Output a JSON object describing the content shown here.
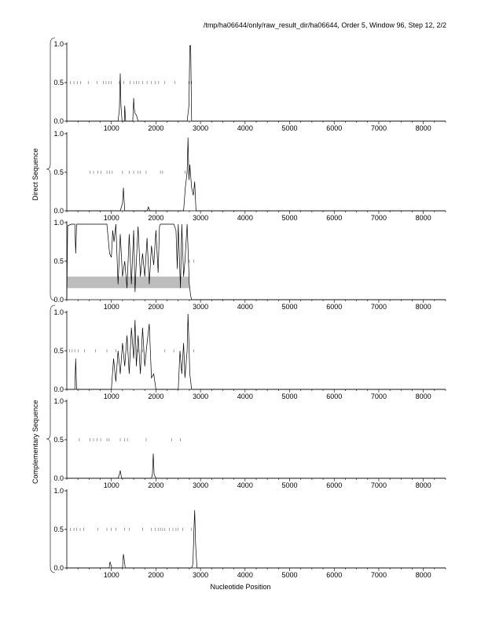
{
  "header": {
    "title": "/tmp/ha06644/only/raw_result_dir/ha06644, Order 5, Window 96, Step 12, 2/2"
  },
  "labels": {
    "xlabel": "Nucleotide Position",
    "group_top": "Direct Sequence",
    "group_bottom": "Complementary Sequence"
  },
  "colors": {
    "line": "#000000",
    "band": "#bdbdbd",
    "tick": "#666666"
  },
  "chart_data": [
    {
      "type": "line",
      "panel": 1,
      "xlim": [
        0,
        8500
      ],
      "ylim": [
        0,
        1
      ],
      "xticks": [
        "1000",
        "2000",
        "3000",
        "4000",
        "5000",
        "6000",
        "7000",
        "8000"
      ],
      "yticks": [
        "0.0",
        "0.5",
        "1.0"
      ],
      "series": [
        {
          "x": [
            0,
            1150,
            1180,
            1200,
            1215,
            1240,
            1290,
            1300,
            1320,
            1480,
            1500,
            1510,
            1530,
            1560,
            1600,
            2700,
            2740,
            2760,
            2780,
            2800,
            8500
          ],
          "y": [
            0,
            0,
            0.15,
            0.62,
            0.2,
            0,
            0,
            0.2,
            0,
            0,
            0.3,
            0.18,
            0.1,
            0.08,
            0,
            0,
            0.2,
            0.98,
            0.98,
            0,
            0
          ]
        }
      ],
      "marker_y": 0.5,
      "markers": [
        80,
        160,
        240,
        310,
        480,
        680,
        820,
        880,
        940,
        1000,
        1180,
        1280,
        1420,
        1500,
        1560,
        1620,
        1700,
        1800,
        1900,
        1980,
        2060,
        2200,
        2420,
        2740,
        2800
      ]
    },
    {
      "type": "line",
      "panel": 2,
      "xlim": [
        0,
        8500
      ],
      "ylim": [
        0,
        1
      ],
      "xticks": [
        "1000",
        "2000",
        "3000",
        "4000",
        "5000",
        "6000",
        "7000",
        "8000"
      ],
      "yticks": [
        "0.0",
        "0.5",
        "1.0"
      ],
      "series": [
        {
          "x": [
            0,
            1200,
            1250,
            1270,
            1300,
            1800,
            1830,
            1860,
            2620,
            2660,
            2700,
            2720,
            2740,
            2760,
            2800,
            2840,
            2870,
            2900,
            8500
          ],
          "y": [
            0,
            0,
            0.1,
            0.3,
            0,
            0,
            0.05,
            0,
            0,
            0.3,
            0.5,
            0.95,
            0.4,
            0.6,
            0.3,
            0.2,
            0.38,
            0,
            0
          ]
        }
      ],
      "marker_y": 0.5,
      "markers": [
        520,
        600,
        700,
        770,
        900,
        960,
        1020,
        1250,
        1400,
        1500,
        1600,
        1650,
        1780,
        2100,
        2150,
        2650,
        2700
      ]
    },
    {
      "type": "line",
      "panel": 3,
      "xlim": [
        0,
        8500
      ],
      "ylim": [
        0,
        1
      ],
      "xticks": [
        "1000",
        "2000",
        "3000",
        "4000",
        "5000",
        "6000",
        "7000",
        "8000"
      ],
      "yticks": [
        "0.0",
        "0.5",
        "1.0"
      ],
      "band": [
        0.15,
        0.3,
        0,
        2750
      ],
      "series": [
        {
          "x": [
            0,
            20,
            100,
            180,
            200,
            220,
            240,
            800,
            900,
            960,
            1000,
            1030,
            1060,
            1100,
            1150,
            1200,
            1250,
            1300,
            1350,
            1400,
            1450,
            1500,
            1530,
            1560,
            1600,
            1650,
            1700,
            1750,
            1800,
            1850,
            1900,
            1950,
            2000,
            2050,
            2080,
            2100,
            2150,
            2200,
            2400,
            2450,
            2480,
            2500,
            2550,
            2580,
            2620,
            2650,
            2700,
            2750,
            2780,
            2800,
            8500
          ],
          "y": [
            0,
            0.96,
            0.98,
            0.98,
            0.6,
            0.98,
            0.98,
            0.98,
            0.98,
            0.6,
            0.55,
            0.9,
            0.75,
            0.98,
            0.2,
            0.85,
            0.3,
            0.5,
            0.15,
            0.85,
            0.2,
            0.9,
            0.1,
            0.5,
            0.95,
            0.3,
            0.6,
            0.3,
            0.8,
            0.2,
            0.7,
            0.45,
            0.9,
            0.35,
            0.95,
            0.98,
            0.98,
            0.98,
            0.98,
            0.9,
            0.4,
            0.98,
            0.15,
            0.98,
            0.3,
            0.5,
            0.98,
            0.2,
            0.05,
            0,
            0
          ]
        }
      ],
      "marker_y": 0.5,
      "markers": [
        2650,
        2750,
        2850
      ]
    },
    {
      "type": "line",
      "panel": 4,
      "xlim": [
        0,
        8500
      ],
      "ylim": [
        0,
        1
      ],
      "xticks": [
        "1000",
        "2000",
        "3000",
        "4000",
        "5000",
        "6000",
        "7000",
        "8000"
      ],
      "yticks": [
        "0.0",
        "0.5",
        "1.0"
      ],
      "series": [
        {
          "x": [
            0,
            180,
            200,
            220,
            1000,
            1050,
            1100,
            1150,
            1200,
            1250,
            1300,
            1350,
            1400,
            1450,
            1500,
            1530,
            1560,
            1600,
            1650,
            1700,
            1750,
            1800,
            1850,
            1900,
            1950,
            2000,
            2500,
            2540,
            2580,
            2620,
            2650,
            2700,
            2720,
            2740,
            2760,
            2800,
            8500
          ],
          "y": [
            0,
            0,
            0.4,
            0,
            0,
            0.4,
            0.1,
            0.5,
            0.2,
            0.6,
            0.3,
            0.7,
            0.2,
            0.8,
            0.4,
            0.9,
            0.3,
            0.7,
            0.2,
            0.8,
            0.3,
            0.6,
            0.85,
            0.15,
            0.2,
            0,
            0,
            0.5,
            0.2,
            0.6,
            0.15,
            0.5,
            0.98,
            0.6,
            0.2,
            0,
            0
          ]
        }
      ],
      "marker_y": 0.5,
      "markers": [
        60,
        120,
        180,
        260,
        400,
        640,
        900,
        1100,
        1600,
        1700,
        2200,
        2400,
        2850
      ]
    },
    {
      "type": "line",
      "panel": 5,
      "xlim": [
        0,
        8500
      ],
      "ylim": [
        0,
        1
      ],
      "xticks": [
        "1000",
        "2000",
        "3000",
        "4000",
        "5000",
        "6000",
        "7000",
        "8000"
      ],
      "yticks": [
        "0.0",
        "0.5",
        "1.0"
      ],
      "series": [
        {
          "x": [
            0,
            1150,
            1180,
            1200,
            1230,
            1900,
            1920,
            1940,
            1960,
            2000,
            8500
          ],
          "y": [
            0,
            0,
            0.05,
            0.1,
            0,
            0,
            0.05,
            0.32,
            0.05,
            0,
            0
          ]
        }
      ],
      "marker_y": 0.5,
      "markers": [
        280,
        520,
        600,
        680,
        760,
        900,
        950,
        1200,
        1300,
        1360,
        1780,
        2350,
        2550
      ]
    },
    {
      "type": "line",
      "panel": 6,
      "xlim": [
        0,
        8500
      ],
      "ylim": [
        0,
        1
      ],
      "xticks": [
        "1000",
        "2000",
        "3000",
        "4000",
        "5000",
        "6000",
        "7000",
        "8000"
      ],
      "yticks": [
        "0.0",
        "0.5",
        "1.0"
      ],
      "series": [
        {
          "x": [
            0,
            950,
            970,
            990,
            1010,
            1250,
            1270,
            1290,
            1310,
            2800,
            2830,
            2850,
            2870,
            2890,
            2920,
            8500
          ],
          "y": [
            0,
            0,
            0.08,
            0.04,
            0,
            0,
            0.18,
            0.1,
            0,
            0,
            0.05,
            0.45,
            0.75,
            0.3,
            0,
            0
          ]
        }
      ],
      "marker_y": 0.5,
      "markers": [
        80,
        160,
        220,
        300,
        380,
        700,
        900,
        1000,
        1100,
        1300,
        1400,
        1700,
        1900,
        1980,
        2050,
        2100,
        2150,
        2200,
        2300,
        2380,
        2450,
        2500,
        2600,
        2800
      ]
    }
  ]
}
